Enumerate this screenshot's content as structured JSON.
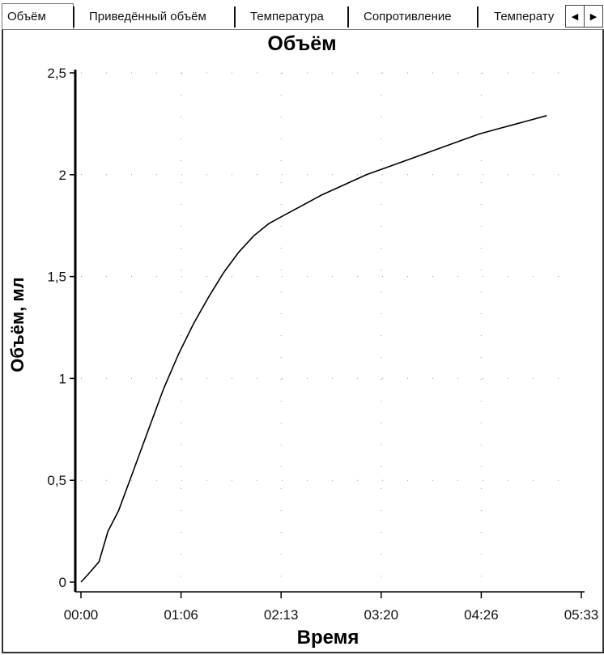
{
  "tabs": [
    {
      "label": "Объём",
      "active": true
    },
    {
      "label": "Приведённый объём",
      "active": false
    },
    {
      "label": "Температура",
      "active": false
    },
    {
      "label": "Сопротивление",
      "active": false
    },
    {
      "label": "Температу",
      "active": false
    }
  ],
  "scroll": {
    "left_icon": "arrow-left-icon",
    "right_icon": "arrow-right-icon"
  },
  "chart_data": {
    "type": "line",
    "title": "Объём",
    "xlabel": "Время",
    "ylabel": "Объём, мл",
    "x_ticks": [
      "00:00",
      "01:06",
      "02:13",
      "03:20",
      "04:26",
      "05:33"
    ],
    "y_ticks": [
      "0",
      "0,5",
      "1",
      "1,5",
      "2",
      "2,5"
    ],
    "xlim": [
      0,
      333
    ],
    "ylim": [
      0,
      2.5
    ],
    "grid": "dotted",
    "series": [
      {
        "x": [
          0,
          5,
          12,
          18,
          25,
          35,
          45,
          55,
          65,
          75,
          85,
          95,
          105,
          115,
          125,
          135,
          145,
          160,
          175,
          190,
          205,
          220,
          235,
          250,
          265,
          280,
          295,
          310
        ],
        "y": [
          0,
          0.04,
          0.1,
          0.25,
          0.35,
          0.55,
          0.75,
          0.95,
          1.12,
          1.27,
          1.4,
          1.52,
          1.62,
          1.7,
          1.76,
          1.8,
          1.84,
          1.9,
          1.95,
          2.0,
          2.04,
          2.08,
          2.12,
          2.16,
          2.2,
          2.23,
          2.26,
          2.29
        ]
      }
    ]
  }
}
